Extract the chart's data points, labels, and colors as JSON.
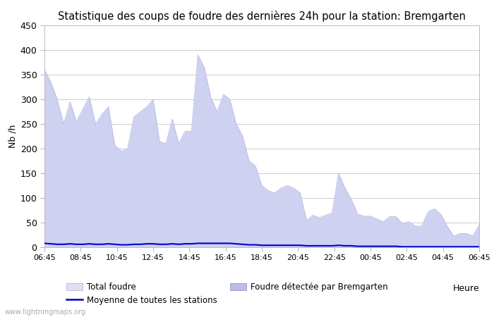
{
  "title": "Statistique des coups de foudre des dernières 24h pour la station: Bremgarten",
  "xlabel": "Heure",
  "ylabel": "Nb /h",
  "watermark": "www.lightningmaps.org",
  "ylim": [
    0,
    450
  ],
  "yticks": [
    0,
    50,
    100,
    150,
    200,
    250,
    300,
    350,
    400,
    450
  ],
  "xtick_labels": [
    "06:45",
    "08:45",
    "10:45",
    "12:45",
    "14:45",
    "16:45",
    "18:45",
    "20:45",
    "22:45",
    "00:45",
    "02:45",
    "04:45",
    "06:45"
  ],
  "bg_color": "#ffffff",
  "grid_color": "#cccccc",
  "fill_color_total": "#dde0f5",
  "fill_color_local": "#b8bce8",
  "line_color_mean": "#0000cc",
  "title_fontsize": 10.5,
  "legend_labels": [
    "Total foudre",
    "Moyenne de toutes les stations",
    "Foudre détectée par Bremgarten"
  ],
  "total_foudre": [
    360,
    335,
    300,
    250,
    295,
    255,
    280,
    305,
    250,
    270,
    285,
    207,
    195,
    200,
    265,
    275,
    285,
    300,
    215,
    210,
    260,
    210,
    235,
    235,
    390,
    365,
    305,
    275,
    310,
    300,
    250,
    225,
    175,
    165,
    125,
    115,
    110,
    120,
    125,
    120,
    110,
    55,
    65,
    60,
    65,
    70,
    150,
    120,
    97,
    67,
    63,
    63,
    57,
    52,
    62,
    62,
    48,
    52,
    43,
    43,
    72,
    78,
    67,
    43,
    23,
    28,
    28,
    23,
    45
  ],
  "mean_stations": [
    8,
    7,
    6,
    6,
    7,
    6,
    6,
    7,
    6,
    6,
    7,
    6,
    5,
    5,
    6,
    6,
    7,
    7,
    6,
    6,
    7,
    6,
    7,
    7,
    8,
    8,
    8,
    8,
    8,
    8,
    7,
    6,
    5,
    5,
    4,
    4,
    4,
    4,
    4,
    4,
    4,
    3,
    3,
    3,
    3,
    3,
    4,
    3,
    3,
    2,
    2,
    2,
    2,
    2,
    2,
    2,
    1,
    1,
    1,
    1,
    1,
    1,
    1,
    1,
    1,
    1,
    1,
    1,
    1
  ],
  "n_points": 69
}
